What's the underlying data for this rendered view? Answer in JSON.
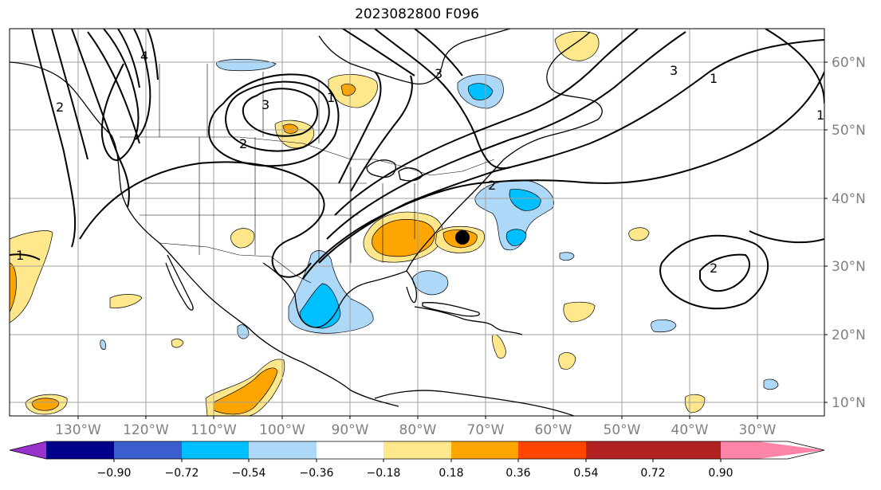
{
  "map": {
    "title": "2023082800 F096",
    "lat_labels": [
      "60°N",
      "50°N",
      "40°N",
      "30°N",
      "20°N",
      "10°N"
    ],
    "lon_labels": [
      "130°W",
      "120°W",
      "110°W",
      "100°W",
      "90°W",
      "80°W",
      "70°W",
      "60°W",
      "50°W",
      "40°W",
      "30°W"
    ],
    "contour_labels": [
      "3",
      "2",
      "1",
      "4",
      "3",
      "2",
      "1",
      "3",
      "1",
      "2",
      "1",
      "2"
    ],
    "storm_marker": "tropical-cyclone-position"
  },
  "colorbar": {
    "colors": [
      "#9932cc",
      "#00008b",
      "#3a5fcd",
      "#00bfff",
      "#add8f7",
      "#ffffff",
      "#ffe88c",
      "#ffa500",
      "#ff4500",
      "#b22222",
      "#ff85a8"
    ],
    "tick_labels": [
      "−0.90",
      "−0.72",
      "−0.54",
      "−0.36",
      "−0.18",
      "0.18",
      "0.36",
      "0.54",
      "0.72",
      "0.90"
    ]
  }
}
